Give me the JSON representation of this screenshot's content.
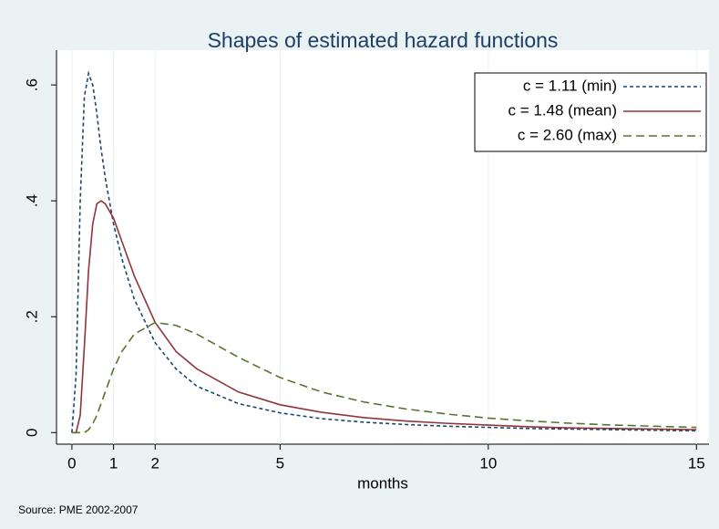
{
  "chart_data": {
    "type": "line",
    "title": "Shapes of estimated hazard functions",
    "x_label": "months",
    "note": "Source: PME 2002-2007",
    "x": [
      0,
      0.1,
      0.2,
      0.3,
      0.4,
      0.5,
      0.6,
      0.7,
      0.8,
      1,
      1.2,
      1.5,
      2,
      2.5,
      3,
      4,
      5,
      6,
      7,
      8,
      9,
      10,
      11,
      12,
      13,
      14,
      15
    ],
    "series": [
      {
        "name": "c = 1.11 (min)",
        "color": "#1a476f",
        "dash": "4 3",
        "values": [
          0,
          0.1,
          0.4,
          0.58,
          0.62,
          0.6,
          0.55,
          0.49,
          0.44,
          0.36,
          0.3,
          0.23,
          0.155,
          0.11,
          0.08,
          0.05,
          0.034,
          0.024,
          0.018,
          0.014,
          0.011,
          0.009,
          0.007,
          0.006,
          0.005,
          0.004,
          0.003
        ]
      },
      {
        "name": "c = 1.48 (mean)",
        "color": "#90353b",
        "dash": "none",
        "values": [
          0,
          0,
          0.03,
          0.15,
          0.28,
          0.36,
          0.395,
          0.4,
          0.395,
          0.37,
          0.33,
          0.27,
          0.19,
          0.14,
          0.11,
          0.07,
          0.048,
          0.035,
          0.026,
          0.02,
          0.016,
          0.013,
          0.01,
          0.008,
          0.007,
          0.006,
          0.005
        ]
      },
      {
        "name": "c = 2.60 (max)",
        "color": "#55752f",
        "dash": "9 5",
        "values": [
          0,
          0,
          0,
          0,
          0.005,
          0.015,
          0.03,
          0.05,
          0.07,
          0.11,
          0.14,
          0.17,
          0.19,
          0.185,
          0.17,
          0.13,
          0.095,
          0.07,
          0.053,
          0.041,
          0.032,
          0.025,
          0.02,
          0.016,
          0.013,
          0.011,
          0.009
        ]
      }
    ],
    "xlim": [
      -0.37,
      15.3
    ],
    "ylim": [
      -0.02,
      0.66
    ],
    "xticks": [
      0,
      1,
      2,
      5,
      10,
      15
    ],
    "yticks": [
      0,
      {
        "value": 0.2,
        "label": ".2"
      },
      {
        "value": 0.4,
        "label": ".4"
      },
      {
        "value": 0.6,
        "label": ".6"
      }
    ],
    "grid": "x",
    "legend": "top-right"
  }
}
